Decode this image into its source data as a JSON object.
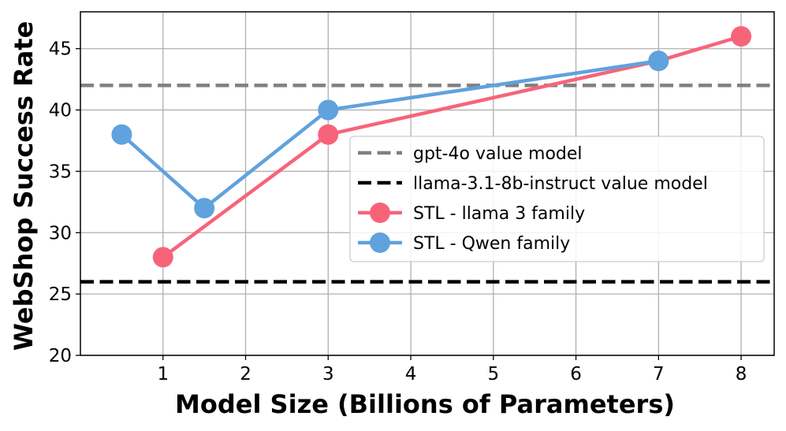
{
  "chart_data": {
    "type": "line",
    "title": "",
    "xlabel": "Model Size (Billions of Parameters)",
    "ylabel": "WebShop Success Rate",
    "xlim": [
      0,
      8.4
    ],
    "ylim": [
      20,
      48
    ],
    "xticks": [
      1,
      2,
      3,
      4,
      5,
      6,
      7,
      8
    ],
    "yticks": [
      20,
      25,
      30,
      35,
      40,
      45
    ],
    "grid": true,
    "legend_position": "center-right",
    "hlines": [
      {
        "name": "gpt-4o value model",
        "y": 42,
        "color": "#808080",
        "style": "dashed"
      },
      {
        "name": "llama-3.1-8b-instruct value model",
        "y": 26,
        "color": "#000000",
        "style": "dashed"
      }
    ],
    "series": [
      {
        "name": "STL - llama 3 family",
        "color": "#f7647a",
        "x": [
          1,
          3,
          7,
          8
        ],
        "y": [
          28,
          38,
          44,
          46
        ]
      },
      {
        "name": "STL - Qwen family",
        "color": "#5fa2dd",
        "x": [
          0.5,
          1.5,
          3,
          7
        ],
        "y": [
          38,
          32,
          40,
          44
        ]
      }
    ]
  }
}
